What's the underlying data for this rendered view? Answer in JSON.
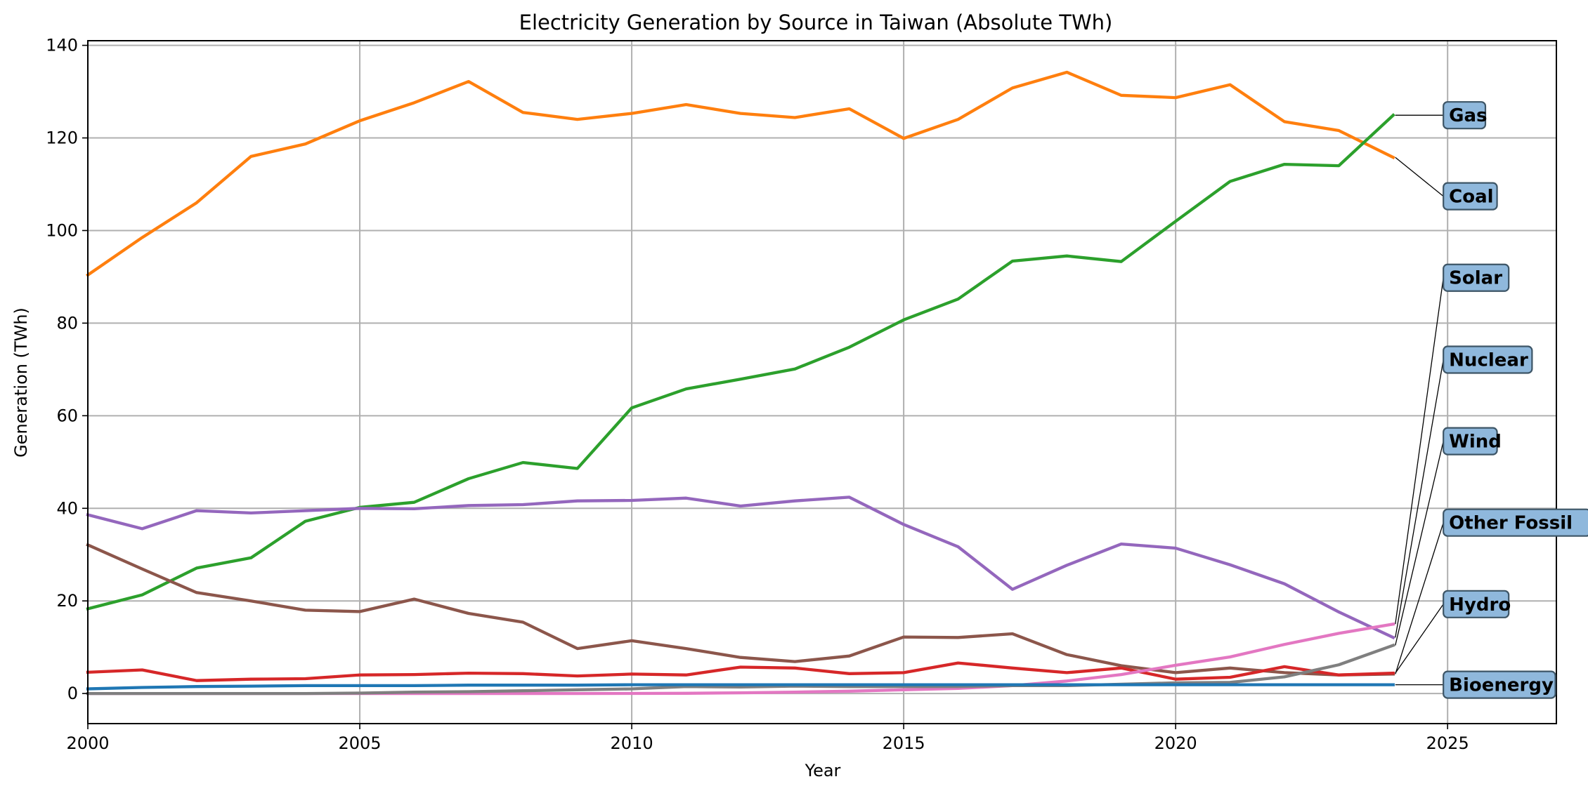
{
  "chart_data": {
    "type": "line",
    "title": "Electricity Generation by Source in Taiwan (Absolute TWh)",
    "xlabel": "Year",
    "ylabel": "Generation (TWh)",
    "xlim": [
      2000,
      2027
    ],
    "ylim": [
      -6.5,
      141
    ],
    "x_ticks": [
      2000,
      2005,
      2010,
      2015,
      2020,
      2025
    ],
    "y_ticks": [
      0,
      20,
      40,
      60,
      80,
      100,
      120,
      140
    ],
    "grid": true,
    "legend": "none (direct labels at right end of each line)",
    "x": [
      2000,
      2001,
      2002,
      2003,
      2004,
      2005,
      2006,
      2007,
      2008,
      2009,
      2010,
      2011,
      2012,
      2013,
      2014,
      2015,
      2016,
      2017,
      2018,
      2019,
      2020,
      2021,
      2022,
      2023,
      2024
    ],
    "series": [
      {
        "name": "Coal",
        "color": "#ff7f0e",
        "values": [
          90.4,
          98.5,
          106.0,
          116.0,
          118.7,
          123.7,
          127.6,
          132.2,
          125.5,
          124.0,
          125.3,
          127.2,
          125.3,
          124.4,
          126.3,
          119.9,
          124.0,
          130.8,
          134.2,
          129.2,
          128.7,
          131.5,
          123.5,
          121.6,
          115.8
        ]
      },
      {
        "name": "Gas",
        "color": "#2ca02c",
        "values": [
          18.3,
          21.3,
          27.1,
          29.3,
          37.2,
          40.2,
          41.3,
          46.4,
          49.9,
          48.6,
          61.7,
          65.8,
          67.9,
          70.1,
          74.8,
          80.7,
          85.2,
          93.4,
          94.5,
          93.3,
          102.0,
          110.6,
          114.3,
          114.0,
          124.9
        ]
      },
      {
        "name": "Nuclear",
        "color": "#9467bd",
        "values": [
          38.6,
          35.6,
          39.5,
          39.0,
          39.5,
          40.0,
          39.9,
          40.6,
          40.8,
          41.6,
          41.7,
          42.2,
          40.5,
          41.6,
          42.4,
          36.5,
          31.7,
          22.5,
          27.7,
          32.3,
          31.4,
          27.8,
          23.7,
          17.6,
          12.1
        ]
      },
      {
        "name": "Other Fossil",
        "color": "#8c564b",
        "values": [
          32.1,
          26.9,
          21.8,
          20.0,
          18.0,
          17.7,
          20.4,
          17.3,
          15.4,
          9.7,
          11.4,
          9.7,
          7.8,
          6.9,
          8.1,
          12.2,
          12.1,
          12.9,
          8.4,
          6.0,
          4.5,
          5.5,
          4.5,
          4.0,
          4.2
        ]
      },
      {
        "name": "Hydro",
        "color": "#d62728",
        "values": [
          4.6,
          5.1,
          2.8,
          3.1,
          3.2,
          4.0,
          4.1,
          4.4,
          4.3,
          3.8,
          4.2,
          4.0,
          5.7,
          5.5,
          4.3,
          4.5,
          6.6,
          5.5,
          4.5,
          5.5,
          3.1,
          3.5,
          5.8,
          4.0,
          4.4
        ]
      },
      {
        "name": "Solar",
        "color": "#e377c2",
        "values": [
          0.0,
          0.0,
          0.0,
          0.0,
          0.0,
          0.0,
          0.0,
          0.0,
          0.0,
          0.0,
          0.02,
          0.05,
          0.15,
          0.3,
          0.5,
          0.8,
          1.1,
          1.7,
          2.7,
          4.1,
          6.1,
          7.9,
          10.6,
          13.0,
          15.0
        ]
      },
      {
        "name": "Wind",
        "color": "#7f7f7f",
        "values": [
          0.0,
          0.0,
          0.0,
          0.0,
          0.0,
          0.1,
          0.3,
          0.4,
          0.6,
          0.8,
          1.0,
          1.5,
          1.4,
          1.6,
          1.5,
          1.5,
          1.5,
          1.7,
          1.7,
          2.0,
          2.3,
          2.4,
          3.6,
          6.2,
          10.4
        ]
      },
      {
        "name": "Bioenergy",
        "color": "#1f77b4",
        "values": [
          1.0,
          1.3,
          1.5,
          1.6,
          1.7,
          1.7,
          1.7,
          1.8,
          1.8,
          1.8,
          1.9,
          1.9,
          1.9,
          1.9,
          1.9,
          1.9,
          1.9,
          1.9,
          1.9,
          1.9,
          1.9,
          1.9,
          1.9,
          1.9,
          1.9
        ]
      }
    ],
    "end_labels": [
      {
        "name": "Gas",
        "label_y": 124.9
      },
      {
        "name": "Coal",
        "label_y": 107.4
      },
      {
        "name": "Solar",
        "label_y": 89.8
      },
      {
        "name": "Nuclear",
        "label_y": 72.1
      },
      {
        "name": "Wind",
        "label_y": 54.5
      },
      {
        "name": "Other Fossil",
        "label_y": 36.9
      },
      {
        "name": "Hydro",
        "label_y": 19.3
      },
      {
        "name": "Bioenergy",
        "label_y": 1.9
      }
    ],
    "label_x": 2025
  }
}
